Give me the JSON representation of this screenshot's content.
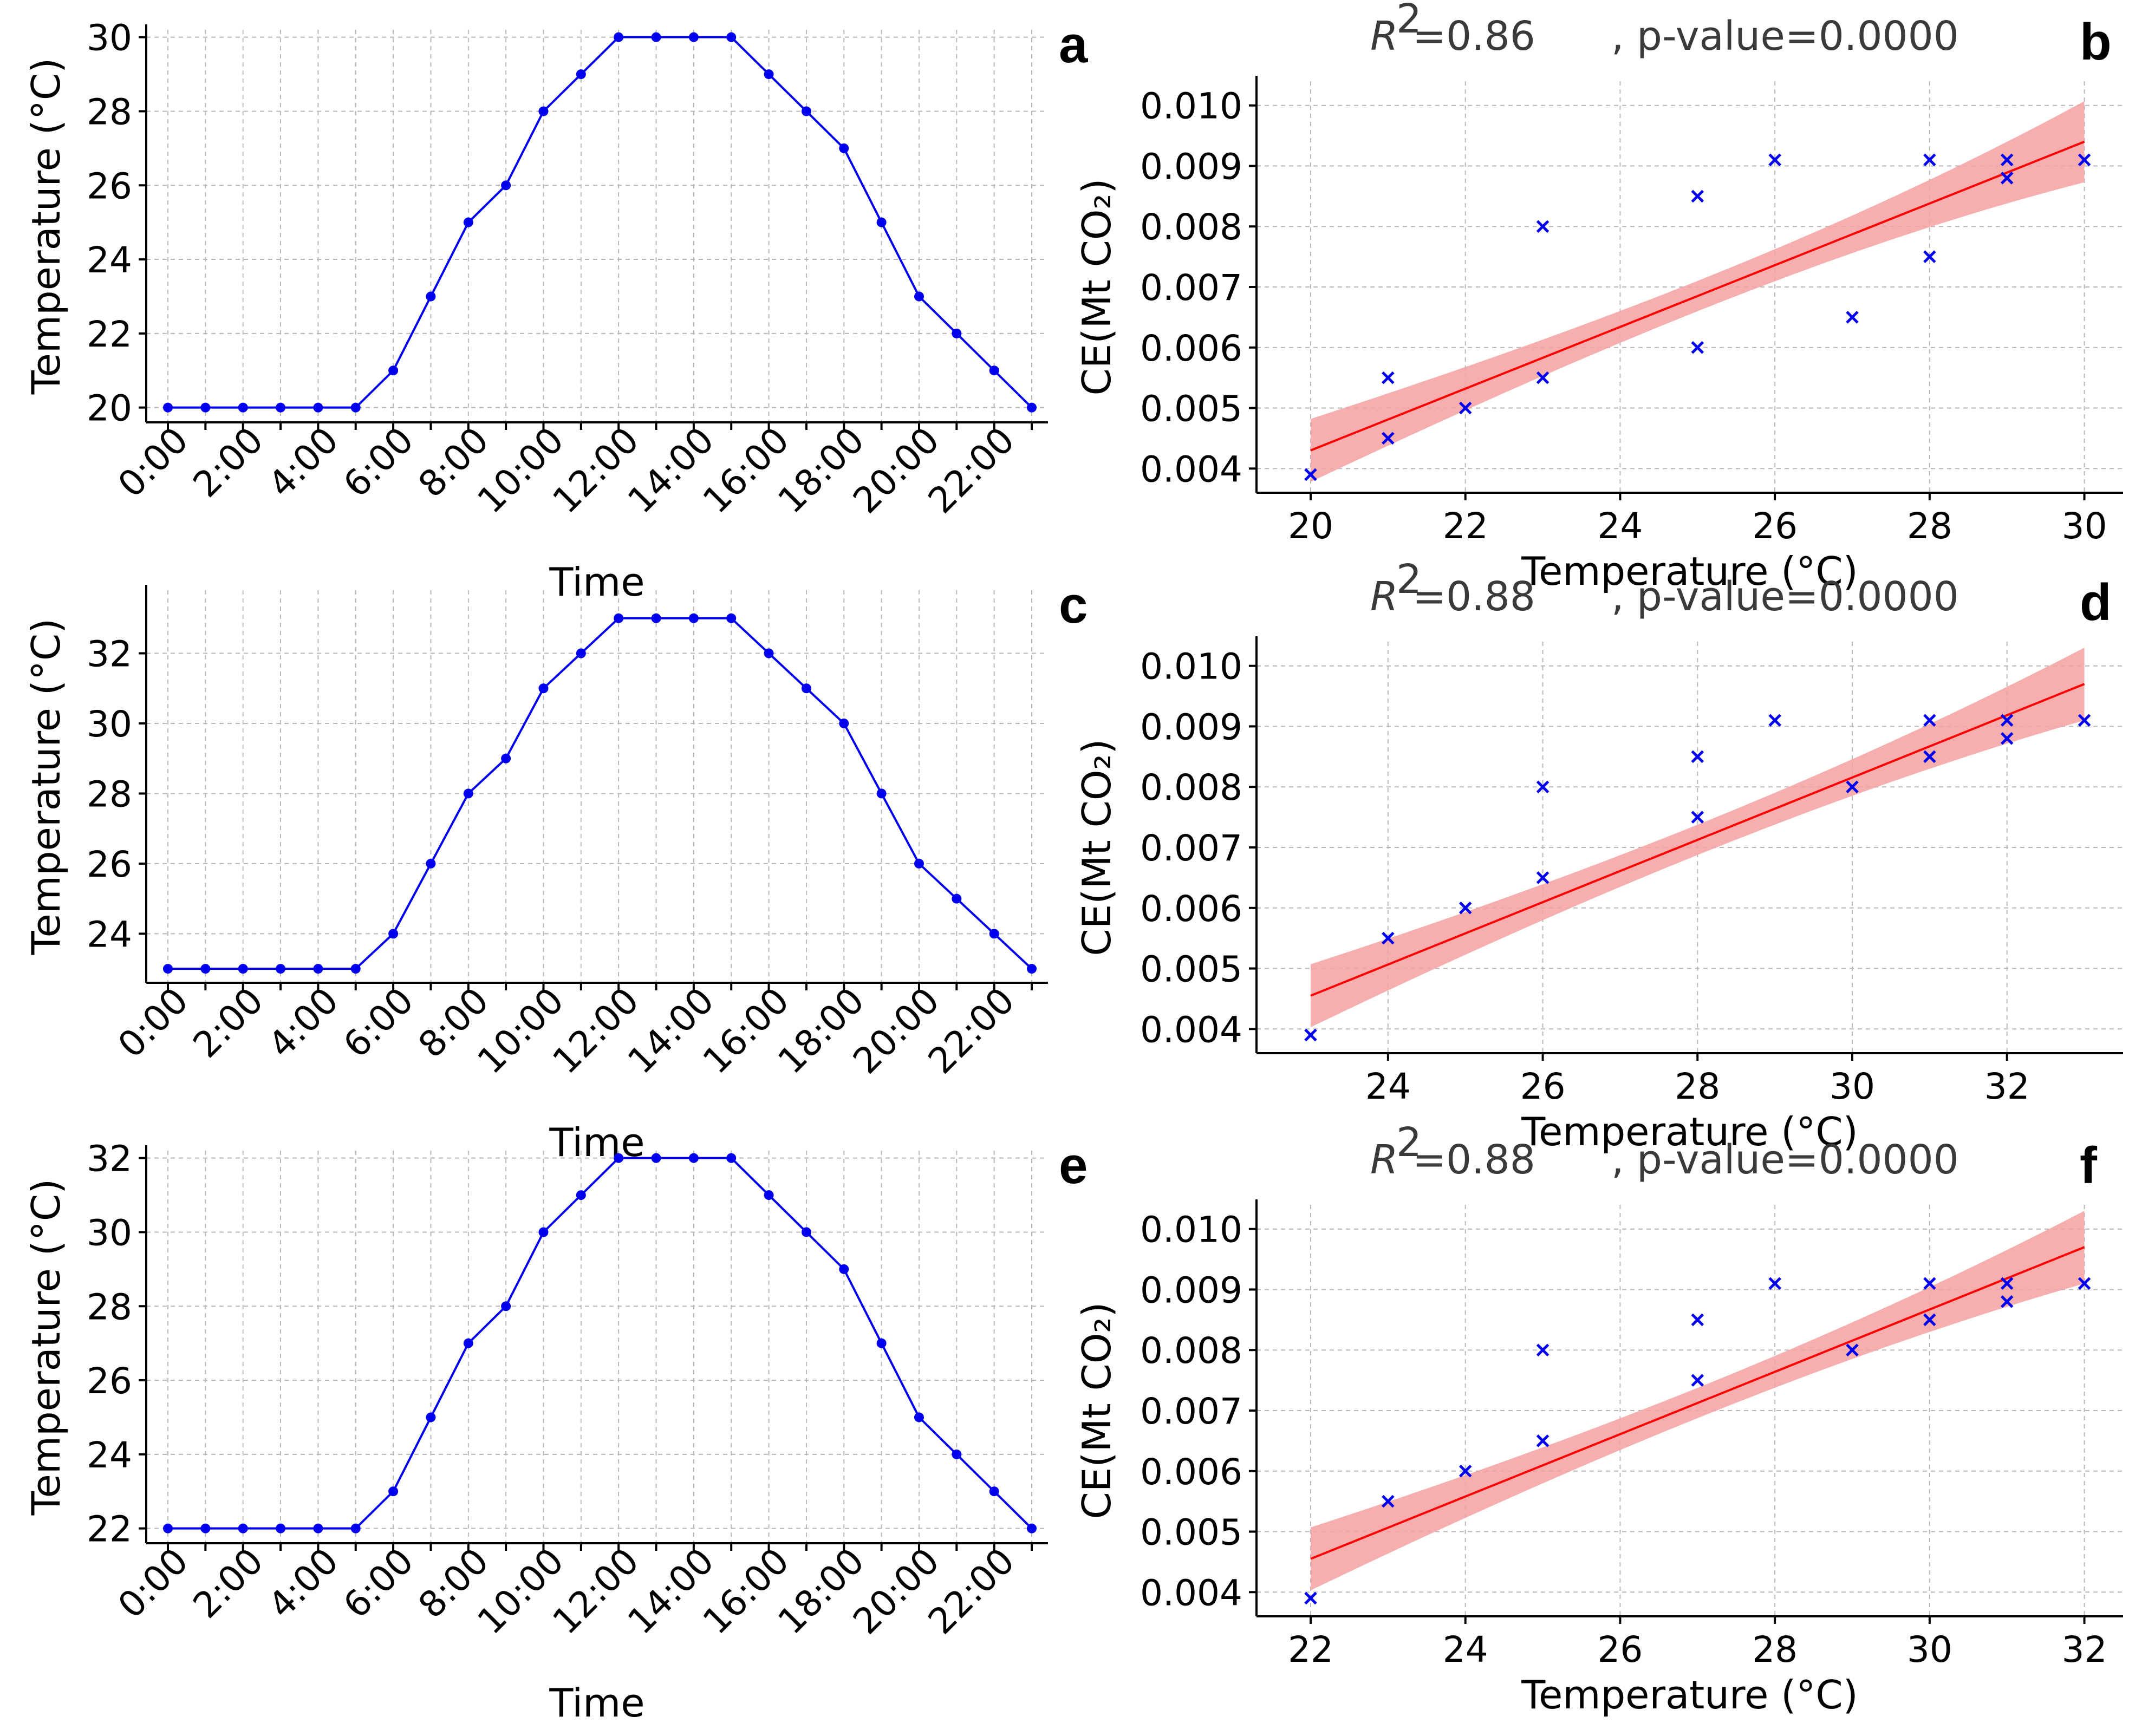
{
  "figure": {
    "colors": {
      "series": "#0000ee",
      "fit": "#ff0000",
      "band": "#f4a0a0",
      "grid": "#b8b8b8"
    }
  },
  "chart_data": [
    {
      "panel": "a",
      "type": "line",
      "title": "",
      "xlabel": "Time",
      "ylabel": "Temperature (°C)",
      "categories": [
        "0:00",
        "1:00",
        "2:00",
        "3:00",
        "4:00",
        "5:00",
        "6:00",
        "7:00",
        "8:00",
        "9:00",
        "10:00",
        "11:00",
        "12:00",
        "13:00",
        "14:00",
        "15:00",
        "16:00",
        "17:00",
        "18:00",
        "19:00",
        "20:00",
        "21:00",
        "22:00",
        "23:00"
      ],
      "xtick_labels": [
        "0:00",
        "2:00",
        "4:00",
        "6:00",
        "8:00",
        "10:00",
        "12:00",
        "14:00",
        "16:00",
        "18:00",
        "20:00",
        "22:00"
      ],
      "values": [
        20,
        20,
        20,
        20,
        20,
        20,
        21,
        23,
        25,
        26,
        28,
        29,
        30,
        30,
        30,
        30,
        29,
        28,
        27,
        25,
        23,
        22,
        21,
        20
      ],
      "ylim": [
        19.6,
        30.2
      ],
      "yticks": [
        20,
        22,
        24,
        26,
        28,
        30
      ],
      "ytick_labels": [
        "20",
        "22",
        "24",
        "26",
        "28",
        "30"
      ],
      "grid": true
    },
    {
      "panel": "b",
      "type": "scatter",
      "title": "",
      "stat_r2": "=0.86",
      "stat_p": ", p-value=0.0000",
      "xlabel": "Temperature (°C)",
      "ylabel": "CE(Mt CO₂)",
      "points": [
        [
          20,
          0.0039
        ],
        [
          21,
          0.0045
        ],
        [
          21,
          0.0055
        ],
        [
          22,
          0.005
        ],
        [
          23,
          0.0055
        ],
        [
          23,
          0.008
        ],
        [
          25,
          0.006
        ],
        [
          25,
          0.0085
        ],
        [
          26,
          0.0091
        ],
        [
          27,
          0.0065
        ],
        [
          28,
          0.0075
        ],
        [
          28,
          0.0091
        ],
        [
          29,
          0.0088
        ],
        [
          29,
          0.0091
        ],
        [
          30,
          0.0091
        ]
      ],
      "fit": {
        "x": [
          20,
          30
        ],
        "y": [
          0.0043,
          0.0094
        ],
        "band_halfwidth": [
          0.00052,
          0.00067
        ],
        "band_mid": 0.00025
      },
      "xlim": [
        19.3,
        30.5
      ],
      "xticks": [
        20,
        22,
        24,
        26,
        28,
        30
      ],
      "xtick_labels": [
        "20",
        "22",
        "24",
        "26",
        "28",
        "30"
      ],
      "ylim": [
        0.0036,
        0.0104
      ],
      "yticks": [
        0.004,
        0.005,
        0.006,
        0.007,
        0.008,
        0.009,
        0.01
      ],
      "ytick_labels": [
        "0.004",
        "0.005",
        "0.006",
        "0.007",
        "0.008",
        "0.009",
        "0.010"
      ],
      "grid": true
    },
    {
      "panel": "c",
      "type": "line",
      "title": "",
      "xlabel": "Time",
      "ylabel": "Temperature (°C)",
      "categories": [
        "0:00",
        "1:00",
        "2:00",
        "3:00",
        "4:00",
        "5:00",
        "6:00",
        "7:00",
        "8:00",
        "9:00",
        "10:00",
        "11:00",
        "12:00",
        "13:00",
        "14:00",
        "15:00",
        "16:00",
        "17:00",
        "18:00",
        "19:00",
        "20:00",
        "21:00",
        "22:00",
        "23:00"
      ],
      "xtick_labels": [
        "0:00",
        "2:00",
        "4:00",
        "6:00",
        "8:00",
        "10:00",
        "12:00",
        "14:00",
        "16:00",
        "18:00",
        "20:00",
        "22:00"
      ],
      "values": [
        23,
        23,
        23,
        23,
        23,
        23,
        24,
        26,
        28,
        29,
        31,
        32,
        33,
        33,
        33,
        33,
        32,
        31,
        30,
        28,
        26,
        25,
        24,
        23
      ],
      "ylim": [
        22.6,
        33.8
      ],
      "yticks": [
        24,
        26,
        28,
        30,
        32
      ],
      "ytick_labels": [
        "24",
        "26",
        "28",
        "30",
        "32"
      ],
      "grid": true
    },
    {
      "panel": "d",
      "type": "scatter",
      "title": "",
      "stat_r2": "=0.88",
      "stat_p": ", p-value=0.0000",
      "xlabel": "Temperature (°C)",
      "ylabel": "CE(Mt CO₂)",
      "points": [
        [
          23,
          0.0039
        ],
        [
          24,
          0.0055
        ],
        [
          25,
          0.006
        ],
        [
          26,
          0.0065
        ],
        [
          26,
          0.008
        ],
        [
          28,
          0.0075
        ],
        [
          28,
          0.0085
        ],
        [
          29,
          0.0091
        ],
        [
          30,
          0.008
        ],
        [
          31,
          0.0085
        ],
        [
          31,
          0.0091
        ],
        [
          32,
          0.0088
        ],
        [
          32,
          0.0091
        ],
        [
          33,
          0.0091
        ]
      ],
      "fit": {
        "x": [
          23,
          33
        ],
        "y": [
          0.00455,
          0.0097
        ],
        "band_halfwidth": [
          0.00052,
          0.0006
        ],
        "band_mid": 0.00025
      },
      "xlim": [
        22.3,
        33.5
      ],
      "xticks": [
        24,
        26,
        28,
        30,
        32
      ],
      "xtick_labels": [
        "24",
        "26",
        "28",
        "30",
        "32"
      ],
      "ylim": [
        0.0036,
        0.0104
      ],
      "yticks": [
        0.004,
        0.005,
        0.006,
        0.007,
        0.008,
        0.009,
        0.01
      ],
      "ytick_labels": [
        "0.004",
        "0.005",
        "0.006",
        "0.007",
        "0.008",
        "0.009",
        "0.010"
      ],
      "grid": true
    },
    {
      "panel": "e",
      "type": "line",
      "title": "",
      "xlabel": "Time",
      "ylabel": "Temperature (°C)",
      "categories": [
        "0:00",
        "1:00",
        "2:00",
        "3:00",
        "4:00",
        "5:00",
        "6:00",
        "7:00",
        "8:00",
        "9:00",
        "10:00",
        "11:00",
        "12:00",
        "13:00",
        "14:00",
        "15:00",
        "16:00",
        "17:00",
        "18:00",
        "19:00",
        "20:00",
        "21:00",
        "22:00",
        "23:00"
      ],
      "xtick_labels": [
        "0:00",
        "2:00",
        "4:00",
        "6:00",
        "8:00",
        "10:00",
        "12:00",
        "14:00",
        "16:00",
        "18:00",
        "20:00",
        "22:00"
      ],
      "values": [
        22,
        22,
        22,
        22,
        22,
        22,
        23,
        25,
        27,
        28,
        30,
        31,
        32,
        32,
        32,
        32,
        31,
        30,
        29,
        27,
        25,
        24,
        23,
        22
      ],
      "ylim": [
        21.6,
        32.2
      ],
      "yticks": [
        22,
        24,
        26,
        28,
        30,
        32
      ],
      "ytick_labels": [
        "22",
        "24",
        "26",
        "28",
        "30",
        "32"
      ],
      "grid": true
    },
    {
      "panel": "f",
      "type": "scatter",
      "title": "",
      "stat_r2": "=0.88",
      "stat_p": ", p-value=0.0000",
      "xlabel": "Temperature (°C)",
      "ylabel": "CE(Mt CO₂)",
      "points": [
        [
          22,
          0.0039
        ],
        [
          23,
          0.0055
        ],
        [
          24,
          0.006
        ],
        [
          25,
          0.0065
        ],
        [
          25,
          0.008
        ],
        [
          27,
          0.0075
        ],
        [
          27,
          0.0085
        ],
        [
          28,
          0.0091
        ],
        [
          29,
          0.008
        ],
        [
          30,
          0.0085
        ],
        [
          30,
          0.0091
        ],
        [
          31,
          0.0088
        ],
        [
          31,
          0.0091
        ],
        [
          32,
          0.0091
        ]
      ],
      "fit": {
        "x": [
          22,
          32
        ],
        "y": [
          0.00455,
          0.0097
        ],
        "band_halfwidth": [
          0.00052,
          0.0006
        ],
        "band_mid": 0.00025
      },
      "xlim": [
        21.3,
        32.5
      ],
      "xticks": [
        22,
        24,
        26,
        28,
        30,
        32
      ],
      "xtick_labels": [
        "22",
        "24",
        "26",
        "28",
        "30",
        "32"
      ],
      "ylim": [
        0.0036,
        0.0104
      ],
      "yticks": [
        0.004,
        0.005,
        0.006,
        0.007,
        0.008,
        0.009,
        0.01
      ],
      "ytick_labels": [
        "0.004",
        "0.005",
        "0.006",
        "0.007",
        "0.008",
        "0.009",
        "0.010"
      ],
      "grid": true
    }
  ]
}
